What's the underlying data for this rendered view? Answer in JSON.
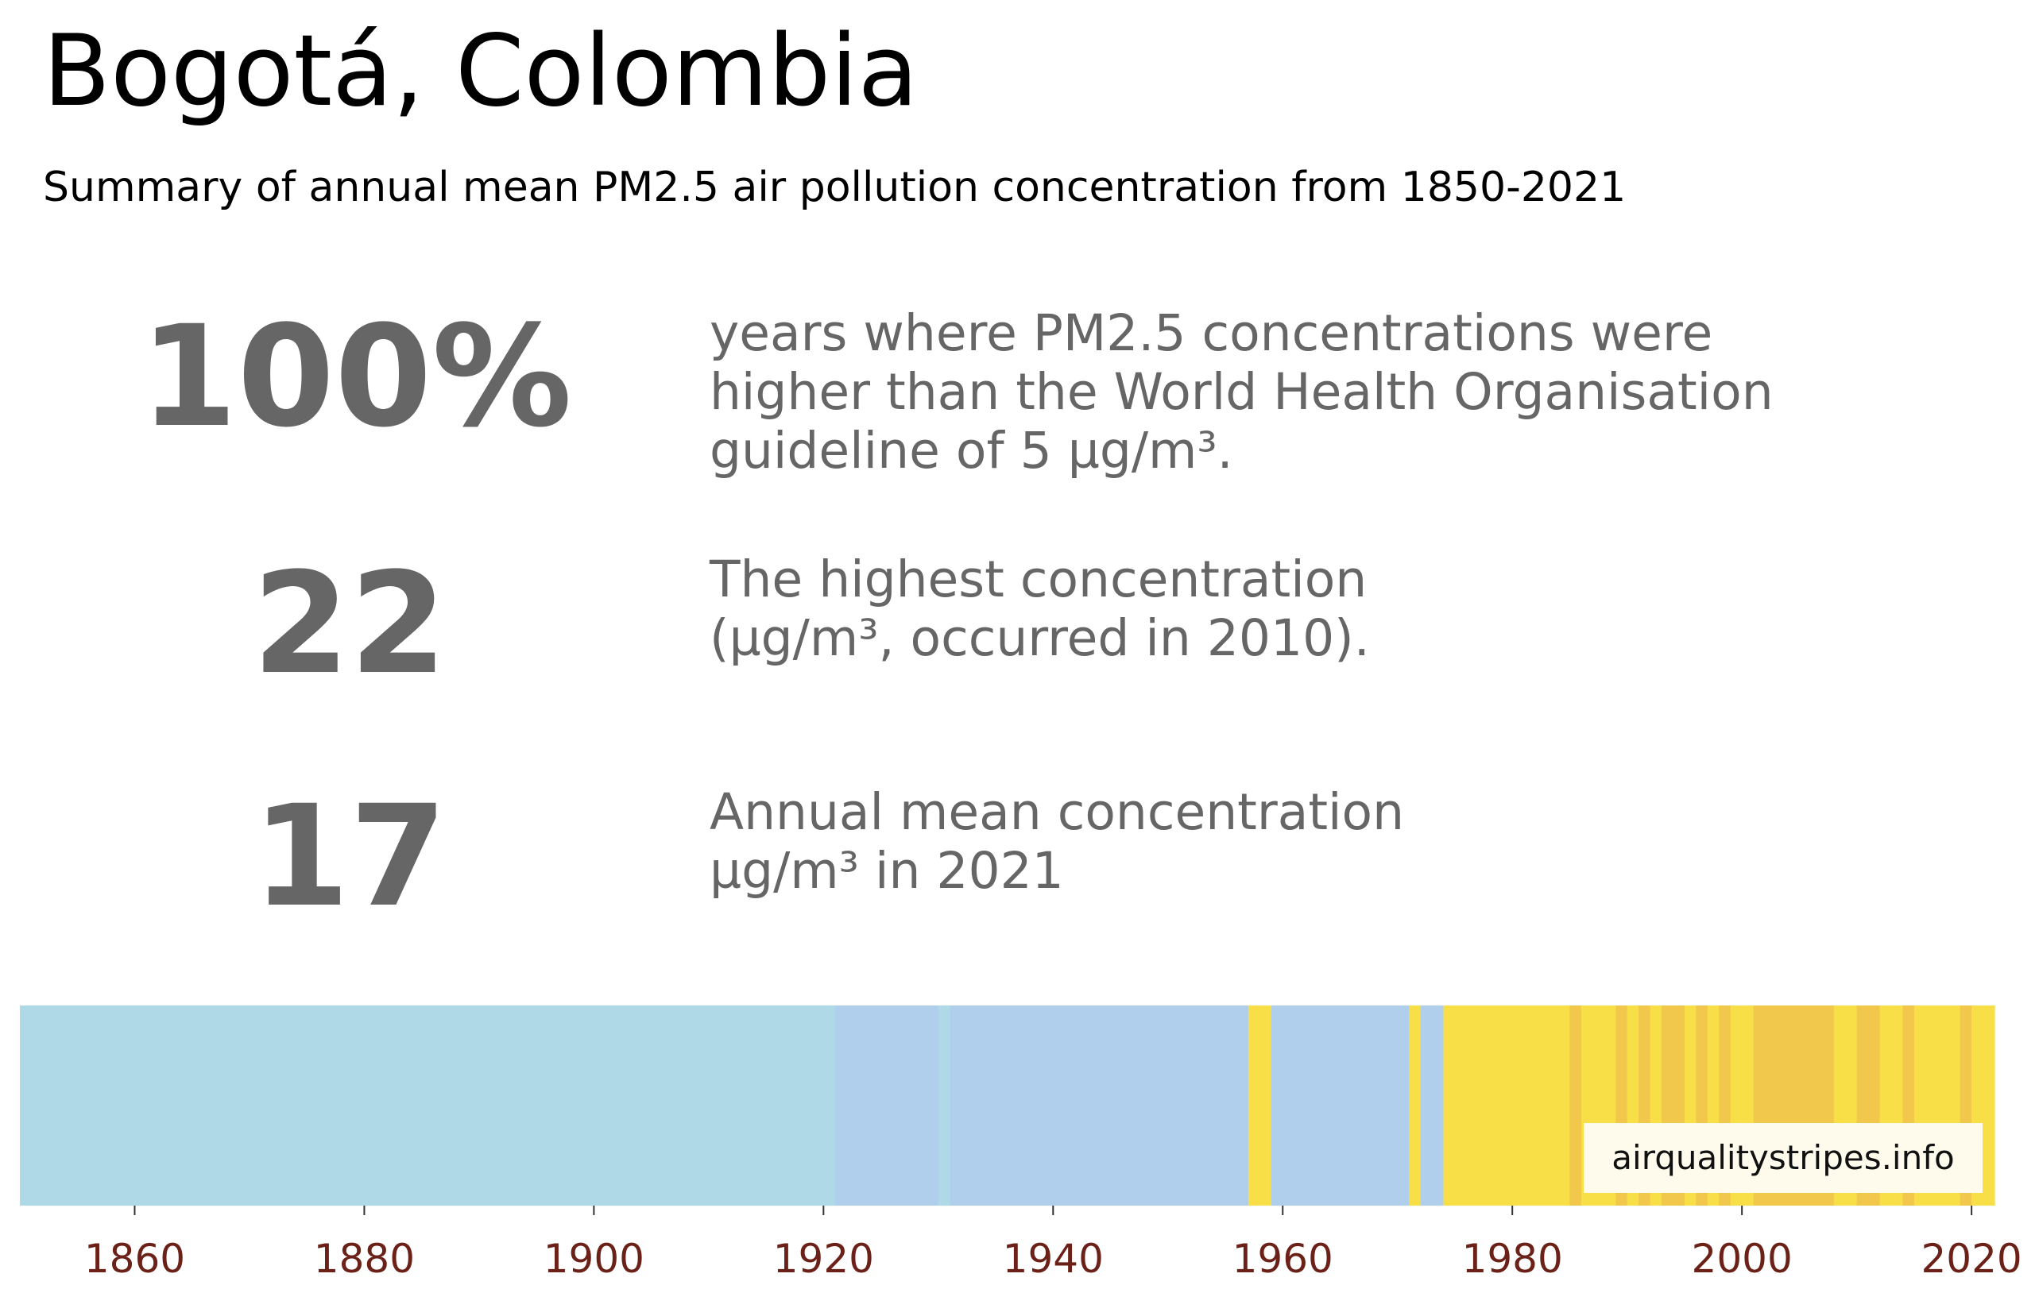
{
  "title": "Bogotá, Colombia",
  "subtitle": "Summary of annual mean PM2.5 air pollution concentration from 1850-2021",
  "stats": [
    {
      "value": "100%",
      "lines": [
        "years where PM2.5 concentrations were",
        "higher than the World Health Organisation",
        "guideline of 5 µg/m³."
      ]
    },
    {
      "value": "22",
      "lines": [
        "The highest concentration",
        "(µg/m³, occurred in 2010)."
      ]
    },
    {
      "value": "17",
      "lines": [
        "Annual mean concentration",
        "µg/m³ in 2021"
      ]
    }
  ],
  "watermark": "airqualitystripes.info",
  "colors": {
    "text_stat": "#666666",
    "tick_label": "#6b2118",
    "light_blue": "#b0d9e8",
    "blue": "#b0cfec",
    "yellow": "#f8df48",
    "amber": "#f1c74c"
  },
  "chart_data": {
    "type": "heatmap",
    "title": "",
    "xlabel": "",
    "ylabel": "",
    "xlim": [
      1850,
      2022
    ],
    "grid": false,
    "x_ticks": [
      "1860",
      "1880",
      "1900",
      "1920",
      "1940",
      "1960",
      "1980",
      "2000",
      "2020"
    ],
    "categories": [
      "≤5 µg/m³ band (light blue)",
      "blue band",
      "yellow band",
      "amber band"
    ],
    "segments": [
      {
        "start": 1850,
        "end": 1921,
        "color": "light_blue"
      },
      {
        "start": 1921,
        "end": 1930,
        "color": "blue"
      },
      {
        "start": 1930,
        "end": 1931,
        "color": "light_blue"
      },
      {
        "start": 1931,
        "end": 1957,
        "color": "blue"
      },
      {
        "start": 1957,
        "end": 1959,
        "color": "yellow"
      },
      {
        "start": 1959,
        "end": 1971,
        "color": "blue"
      },
      {
        "start": 1971,
        "end": 1972,
        "color": "yellow"
      },
      {
        "start": 1972,
        "end": 1974,
        "color": "blue"
      },
      {
        "start": 1974,
        "end": 1985,
        "color": "yellow"
      },
      {
        "start": 1985,
        "end": 1986,
        "color": "amber"
      },
      {
        "start": 1986,
        "end": 1989,
        "color": "yellow"
      },
      {
        "start": 1989,
        "end": 1990,
        "color": "amber"
      },
      {
        "start": 1990,
        "end": 1991,
        "color": "yellow"
      },
      {
        "start": 1991,
        "end": 1992,
        "color": "amber"
      },
      {
        "start": 1992,
        "end": 1993,
        "color": "yellow"
      },
      {
        "start": 1993,
        "end": 1995,
        "color": "amber"
      },
      {
        "start": 1995,
        "end": 1996,
        "color": "yellow"
      },
      {
        "start": 1996,
        "end": 1997,
        "color": "amber"
      },
      {
        "start": 1997,
        "end": 1998,
        "color": "yellow"
      },
      {
        "start": 1998,
        "end": 1999,
        "color": "amber"
      },
      {
        "start": 1999,
        "end": 2001,
        "color": "yellow"
      },
      {
        "start": 2001,
        "end": 2008,
        "color": "amber"
      },
      {
        "start": 2008,
        "end": 2010,
        "color": "yellow"
      },
      {
        "start": 2010,
        "end": 2012,
        "color": "amber"
      },
      {
        "start": 2012,
        "end": 2014,
        "color": "yellow"
      },
      {
        "start": 2014,
        "end": 2015,
        "color": "amber"
      },
      {
        "start": 2015,
        "end": 2019,
        "color": "yellow"
      },
      {
        "start": 2019,
        "end": 2020,
        "color": "amber"
      },
      {
        "start": 2020,
        "end": 2022,
        "color": "yellow"
      }
    ]
  }
}
